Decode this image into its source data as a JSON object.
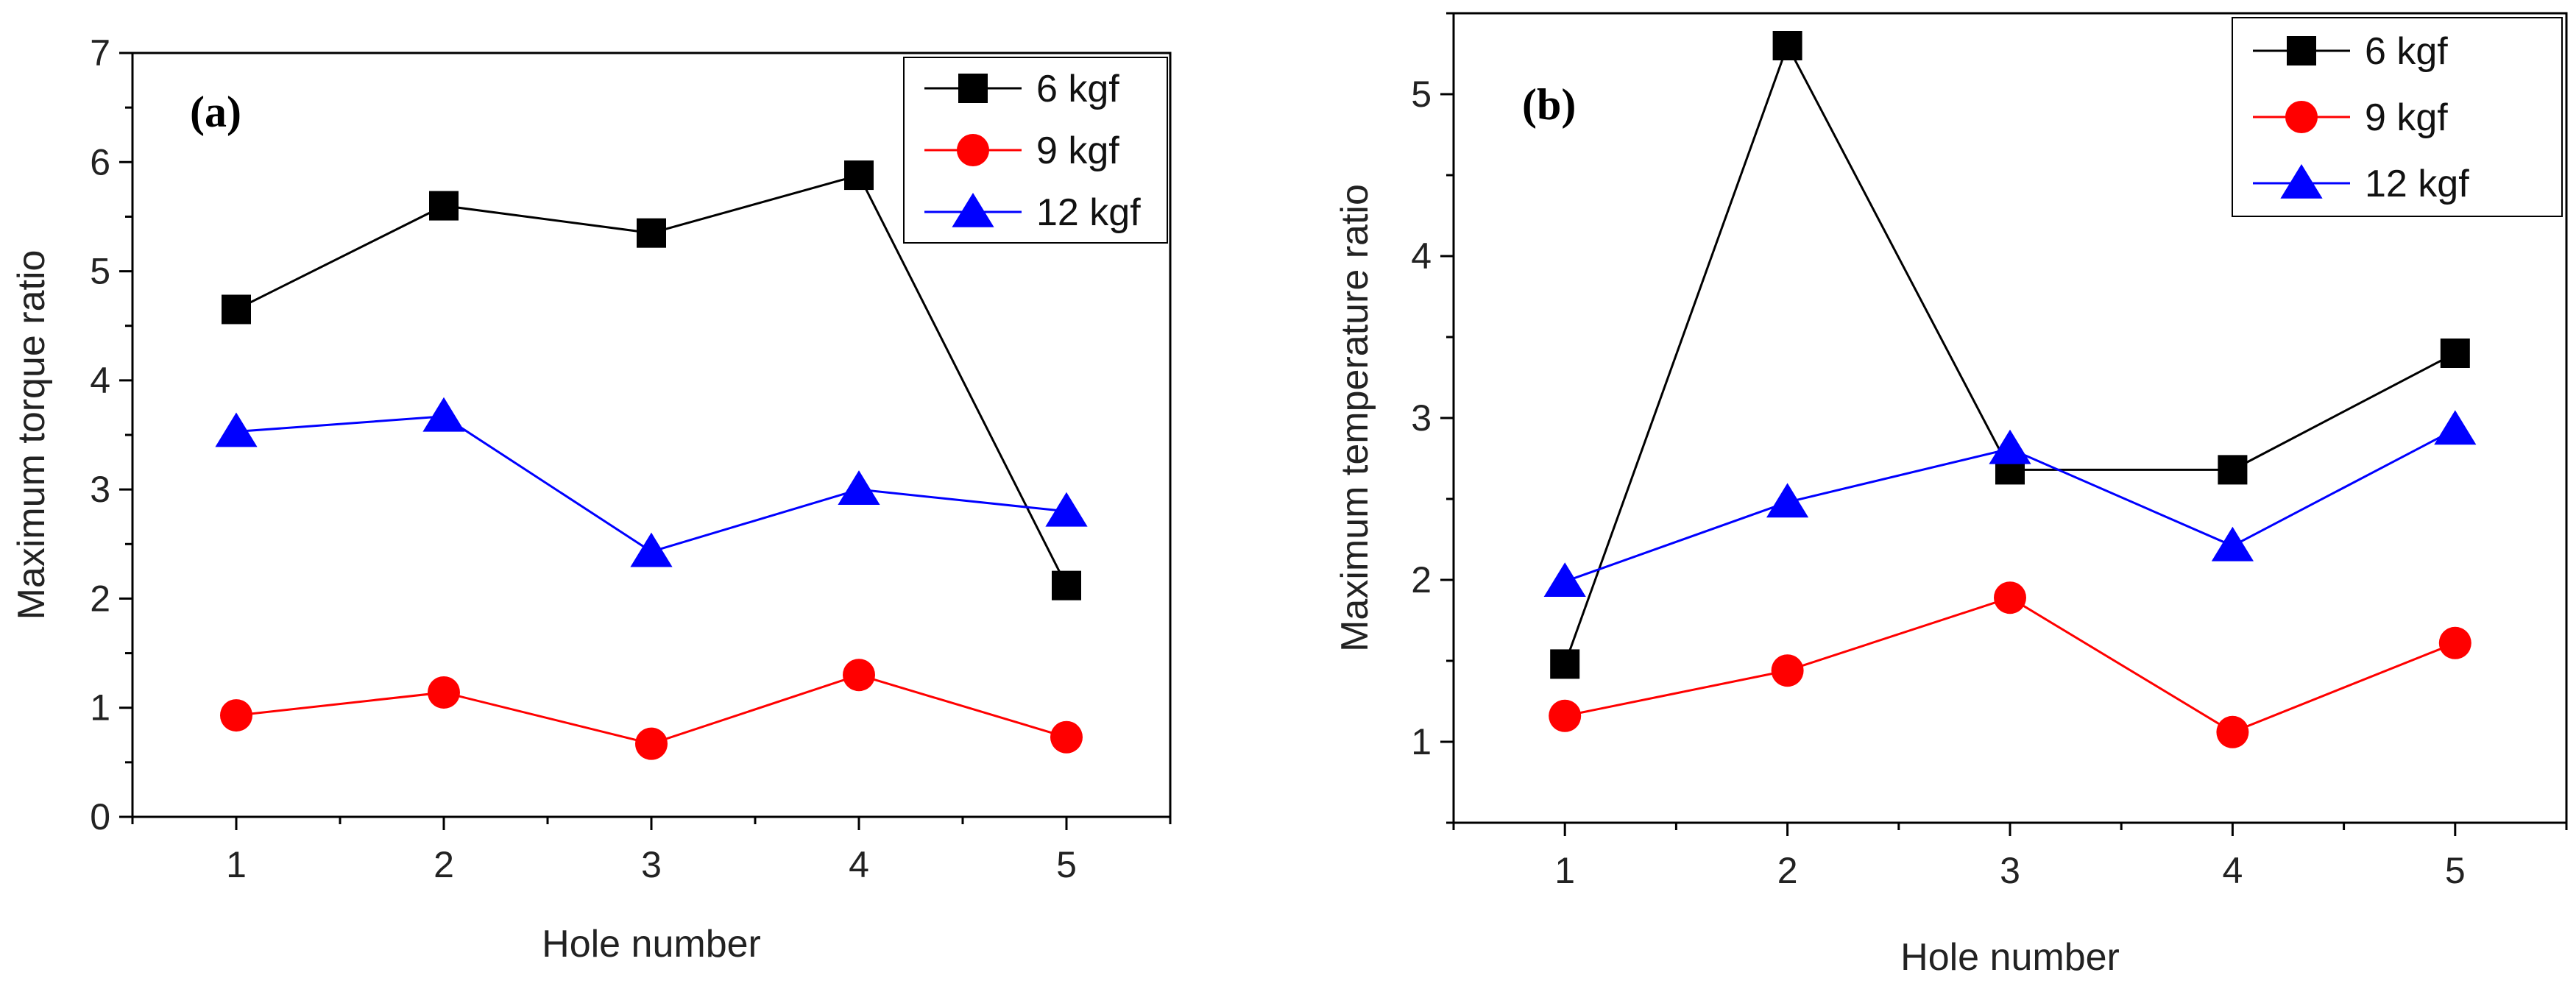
{
  "chart_data": [
    {
      "type": "line",
      "panel_label": "(a)",
      "title": "",
      "xlabel": "Hole number",
      "ylabel": "Maximum torque ratio",
      "categories": [
        "1",
        "2",
        "3",
        "4",
        "5"
      ],
      "x": [
        1,
        2,
        3,
        4,
        5
      ],
      "xlim": [
        0.5,
        5.5
      ],
      "ylim": [
        0,
        7
      ],
      "yticks": [
        0,
        1,
        2,
        3,
        4,
        5,
        6,
        7
      ],
      "yticks_labels": [
        "0",
        "1",
        "2",
        "3",
        "4",
        "5",
        "6",
        "7"
      ],
      "legend_position": "top-right",
      "series": [
        {
          "name": "6 kgf",
          "color": "#000000",
          "marker": "square",
          "values": [
            4.65,
            5.6,
            5.35,
            5.88,
            2.12
          ]
        },
        {
          "name": "9 kgf",
          "color": "#ff0000",
          "marker": "circle",
          "values": [
            0.93,
            1.14,
            0.67,
            1.3,
            0.73
          ]
        },
        {
          "name": "12 kgf",
          "color": "#0000ff",
          "marker": "triangle",
          "values": [
            3.53,
            3.67,
            2.43,
            3.0,
            2.8
          ]
        }
      ]
    },
    {
      "type": "line",
      "panel_label": "(b)",
      "title": "",
      "xlabel": "Hole number",
      "ylabel": "Maximum temperature ratio",
      "categories": [
        "1",
        "2",
        "3",
        "4",
        "5"
      ],
      "x": [
        1,
        2,
        3,
        4,
        5
      ],
      "xlim": [
        0.5,
        5.5
      ],
      "ylim": [
        0.5,
        5.5
      ],
      "yticks": [
        1,
        2,
        3,
        4,
        5
      ],
      "yticks_labels": [
        "1",
        "2",
        "3",
        "4",
        "5"
      ],
      "legend_position": "top-right",
      "series": [
        {
          "name": "6 kgf",
          "color": "#000000",
          "marker": "square",
          "values": [
            1.48,
            5.3,
            2.68,
            2.68,
            3.4
          ]
        },
        {
          "name": "9 kgf",
          "color": "#ff0000",
          "marker": "circle",
          "values": [
            1.16,
            1.44,
            1.89,
            1.06,
            1.61
          ]
        },
        {
          "name": "12 kgf",
          "color": "#0000ff",
          "marker": "triangle",
          "values": [
            1.99,
            2.48,
            2.81,
            2.21,
            2.93
          ]
        }
      ]
    }
  ]
}
